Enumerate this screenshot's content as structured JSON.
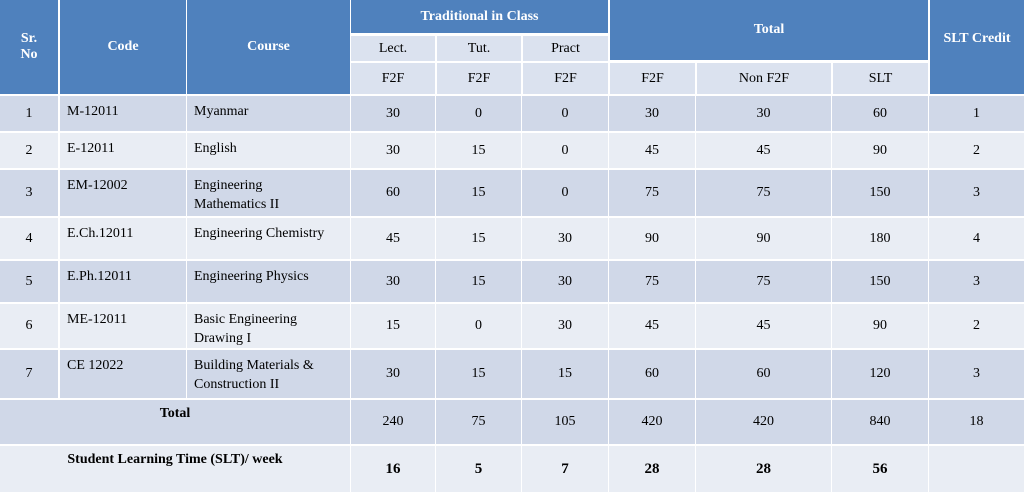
{
  "header": {
    "sr_no": "Sr.\nNo",
    "code": "Code",
    "course": "Course",
    "traditional": "Traditional  in Class",
    "total": "Total",
    "slt_credit": "SLT Credit",
    "lect": "Lect.",
    "tut": "Tut.",
    "pract": "Pract",
    "f2f": "F2F",
    "non_f2f": "Non F2F",
    "slt": "SLT"
  },
  "rows": [
    {
      "sr": "1",
      "code": "M-12011",
      "course": "Myanmar",
      "lect": "30",
      "tut": "0",
      "pract": "0",
      "f2f": "30",
      "nonf2f": "30",
      "slt": "60",
      "credit": "1"
    },
    {
      "sr": "2",
      "code": "E-12011",
      "course": "English",
      "lect": "30",
      "tut": "15",
      "pract": "0",
      "f2f": "45",
      "nonf2f": "45",
      "slt": "90",
      "credit": "2"
    },
    {
      "sr": "3",
      "code": "EM-12002",
      "course": "Engineering\nMathematics II",
      "lect": "60",
      "tut": "15",
      "pract": "0",
      "f2f": "75",
      "nonf2f": "75",
      "slt": "150",
      "credit": "3"
    },
    {
      "sr": "4",
      "code": "E.Ch.12011",
      "course": "Engineering  Chemistry",
      "lect": "45",
      "tut": "15",
      "pract": "30",
      "f2f": "90",
      "nonf2f": "90",
      "slt": "180",
      "credit": "4"
    },
    {
      "sr": "5",
      "code": "E.Ph.12011",
      "course": "Engineering  Physics",
      "lect": "30",
      "tut": "15",
      "pract": "30",
      "f2f": "75",
      "nonf2f": "75",
      "slt": "150",
      "credit": "3"
    },
    {
      "sr": "6",
      "code": "ME-12011",
      "course": "Basic  Engineering\nDrawing I",
      "lect": "15",
      "tut": "0",
      "pract": "30",
      "f2f": "45",
      "nonf2f": "45",
      "slt": "90",
      "credit": "2"
    },
    {
      "sr": "7",
      "code": "CE 12022",
      "course": "Building  Materials  &\nConstruction II",
      "lect": "30",
      "tut": "15",
      "pract": "15",
      "f2f": "60",
      "nonf2f": "60",
      "slt": "120",
      "credit": "3"
    }
  ],
  "total_row": {
    "label": "Total",
    "lect": "240",
    "tut": "75",
    "pract": "105",
    "f2f": "420",
    "nonf2f": "420",
    "slt": "840",
    "credit": "18"
  },
  "slt_row": {
    "label": "Student Learning Time (SLT)/ week",
    "lect": "16",
    "tut": "5",
    "pract": "7",
    "f2f": "28",
    "nonf2f": "28",
    "slt": "56",
    "credit": ""
  }
}
